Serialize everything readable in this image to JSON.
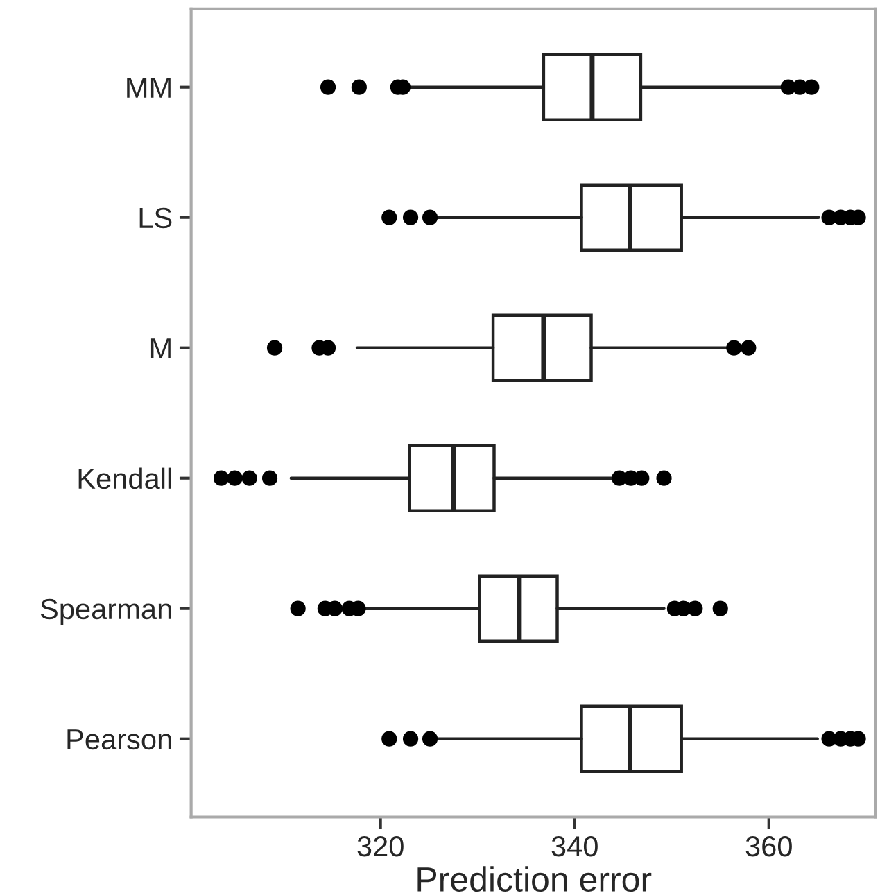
{
  "chart_data": {
    "type": "box",
    "orientation": "horizontal",
    "xlabel": "Prediction error",
    "categories": [
      "MM",
      "LS",
      "M",
      "Kendall",
      "Spearman",
      "Pearson"
    ],
    "boxes": [
      {
        "low": 322.3,
        "q1": 336.8,
        "median": 341.8,
        "q3": 346.8,
        "high": 361.3,
        "outliers": [
          314.6,
          317.8,
          321.8,
          322.3,
          362.0,
          363.2,
          364.4
        ]
      },
      {
        "low": 325.6,
        "q1": 340.7,
        "median": 345.7,
        "q3": 351.0,
        "high": 365.1,
        "outliers": [
          320.9,
          323.1,
          325.1,
          366.2,
          367.4,
          368.4,
          369.2
        ]
      },
      {
        "low": 317.6,
        "q1": 331.6,
        "median": 336.8,
        "q3": 341.7,
        "high": 356.2,
        "outliers": [
          309.1,
          313.7,
          314.6,
          356.4,
          357.9
        ]
      },
      {
        "low": 310.8,
        "q1": 323.0,
        "median": 327.5,
        "q3": 331.7,
        "high": 344.4,
        "outliers": [
          303.6,
          305.0,
          306.5,
          308.6,
          344.6,
          345.8,
          346.9,
          349.2
        ]
      },
      {
        "low": 318.4,
        "q1": 330.2,
        "median": 334.3,
        "q3": 338.2,
        "high": 349.2,
        "outliers": [
          311.5,
          314.3,
          315.3,
          316.8,
          317.7,
          350.3,
          351.2,
          352.4,
          355.0
        ]
      },
      {
        "low": 325.6,
        "q1": 340.7,
        "median": 345.7,
        "q3": 351.0,
        "high": 365.0,
        "outliers": [
          320.9,
          323.1,
          325.1,
          366.2,
          367.4,
          368.4,
          369.2
        ]
      }
    ],
    "xlim": [
      300.5,
      371
    ],
    "xticks": [
      320,
      340,
      360
    ],
    "grid": false
  }
}
